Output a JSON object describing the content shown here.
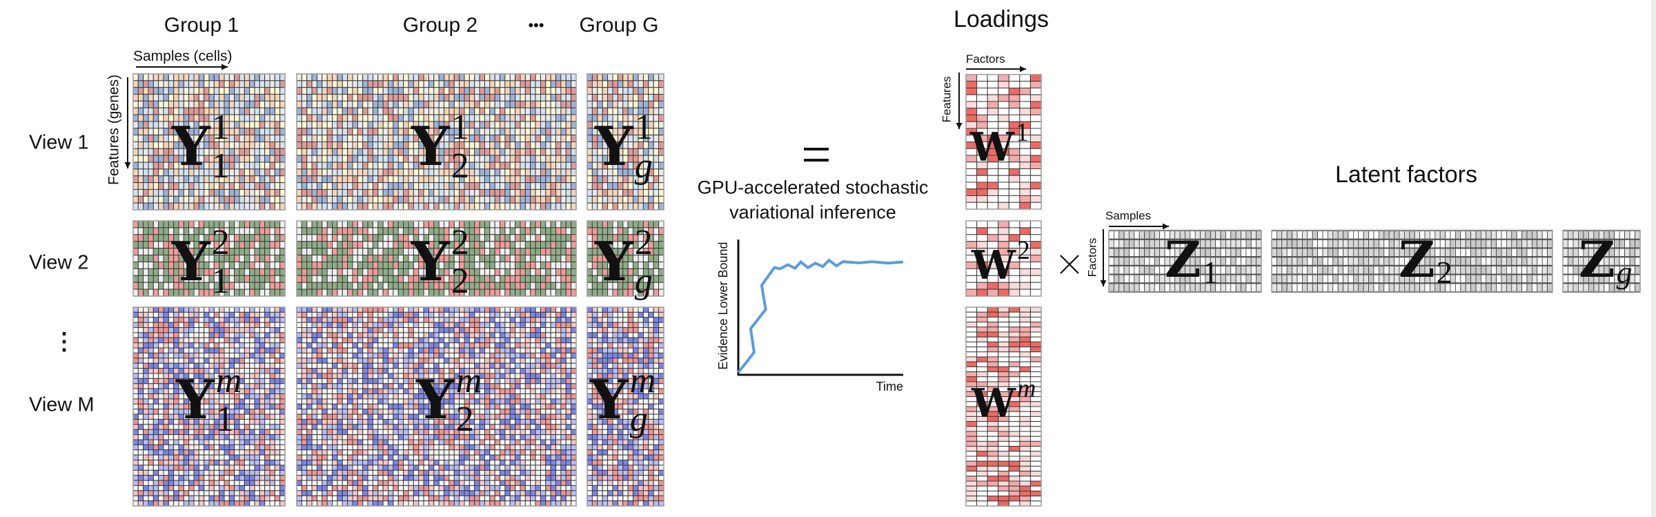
{
  "groups": {
    "g1": "Group 1",
    "g2": "Group 2",
    "ellipsis": "•••",
    "gG": "Group G"
  },
  "views": {
    "v1": "View 1",
    "v2": "View 2",
    "ellipsis": "⋮",
    "vM": "View M"
  },
  "data_axes": {
    "samples": "Samples (cells)",
    "features": "Features (genes)"
  },
  "equals": "=",
  "inference": {
    "line1": "GPU-accelerated stochastic",
    "line2": "variational inference"
  },
  "loadings": {
    "title": "Loadings",
    "factors": "Factors",
    "features": "Features"
  },
  "latent": {
    "title": "Latent factors",
    "samples": "Samples",
    "factors": "Factors",
    "times": "×"
  },
  "matrices": {
    "Y11": {
      "base": "Y",
      "sup": "1",
      "sub": "1"
    },
    "Y12": {
      "base": "Y",
      "sup": "1",
      "sub": "2"
    },
    "Y1g": {
      "base": "Y",
      "sup": "1",
      "sub": "g"
    },
    "Y21": {
      "base": "Y",
      "sup": "2",
      "sub": "1"
    },
    "Y22": {
      "base": "Y",
      "sup": "2",
      "sub": "2"
    },
    "Y2g": {
      "base": "Y",
      "sup": "2",
      "sub": "g"
    },
    "Ym1": {
      "base": "Y",
      "sup": "m",
      "sub": "1"
    },
    "Ym2": {
      "base": "Y",
      "sup": "m",
      "sub": "2"
    },
    "Ymg": {
      "base": "Y",
      "sup": "m",
      "sub": "g"
    },
    "W1": {
      "base": "W",
      "sup": "1"
    },
    "W2": {
      "base": "W",
      "sup": "2"
    },
    "Wm": {
      "base": "W",
      "sup": "m"
    },
    "Z1": {
      "base": "Z",
      "sub": "1"
    },
    "Z2": {
      "base": "Z",
      "sub": "2"
    },
    "Zg": {
      "base": "Z",
      "sub": "g"
    }
  },
  "palettes": {
    "view1": [
      "#df9b99",
      "#9fb3d8",
      "#d5e2ef",
      "#fdf7d6",
      "#f6d5bb",
      "#ebebeb"
    ],
    "view2": [
      "#8fad88",
      "#8fad88",
      "#ef9b98",
      "#f0f0f0"
    ],
    "viewM": [
      "#7c86e8",
      "#b9beF4",
      "#ee9795",
      "#f6c8c8",
      "#f7f7f7",
      "#f7f7f7"
    ],
    "loadings": [
      "#ffffff",
      "#ffffff",
      "#ffffff",
      "#fadcdc",
      "#f3abab",
      "#ec6a64"
    ],
    "factors": [
      "#c9c9c9",
      "#d6d6d6",
      "#e4e4e4",
      "#ffffff"
    ],
    "elbo_line": "#5b9bdc"
  },
  "chart_data": {
    "type": "line",
    "title": "",
    "xlabel": "Time",
    "ylabel": "Evidence Lower Bound",
    "xlim": [
      0,
      100
    ],
    "ylim": [
      0,
      100
    ],
    "grid": false,
    "series": [
      {
        "name": "ELBO",
        "x": [
          0,
          9.6,
          7.5,
          16.6,
          14.2,
          21.9,
          25.4,
          29.9,
          34.4,
          37.9,
          42.2,
          46.7,
          51.2,
          55.0,
          59.5,
          63.5,
          73.1,
          81.1,
          90.7,
          100
        ],
        "y": [
          1.7,
          16.6,
          34.2,
          48.3,
          66.1,
          79.3,
          78.3,
          81.4,
          78.8,
          83.4,
          79.2,
          82.5,
          80.0,
          84.7,
          80.5,
          83.6,
          82.7,
          83.6,
          82.5,
          83.4
        ]
      }
    ]
  }
}
